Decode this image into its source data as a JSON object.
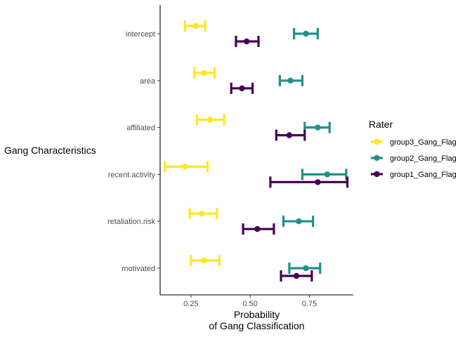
{
  "chart_data": {
    "type": "errorbar-dot",
    "orientation": "horizontal",
    "xlabel": [
      "Probability",
      "of Gang Classification"
    ],
    "ylabel": "Gang Characteristics",
    "xlim": [
      0.12,
      0.935
    ],
    "x_ticks": [
      {
        "value": 0.25,
        "label": "0.25"
      },
      {
        "value": 0.5,
        "label": "0.50"
      },
      {
        "value": 0.75,
        "label": "0.75"
      }
    ],
    "categories": [
      "intercept",
      "area",
      "affiliated",
      "recent.activity",
      "retaliation.risk",
      "motivated"
    ],
    "grid": false,
    "legend": {
      "title": "Rater",
      "placement": "right",
      "order": [
        "group3_Gang_Flag",
        "group2_Gang_Flag",
        "group1_Gang_Flag"
      ]
    },
    "series": [
      {
        "name": "group3_Gang_Flag",
        "color": "#FDE725",
        "points": [
          {
            "category": "intercept",
            "estimate": 0.27,
            "lower": 0.225,
            "upper": 0.31
          },
          {
            "category": "area",
            "estimate": 0.305,
            "lower": 0.265,
            "upper": 0.35
          },
          {
            "category": "affiliated",
            "estimate": 0.33,
            "lower": 0.275,
            "upper": 0.39
          },
          {
            "category": "recent.activity",
            "estimate": 0.225,
            "lower": 0.14,
            "upper": 0.32
          },
          {
            "category": "retaliation.risk",
            "estimate": 0.295,
            "lower": 0.245,
            "upper": 0.36
          },
          {
            "category": "motivated",
            "estimate": 0.305,
            "lower": 0.25,
            "upper": 0.37
          }
        ]
      },
      {
        "name": "group2_Gang_Flag",
        "color": "#21908C",
        "points": [
          {
            "category": "intercept",
            "estimate": 0.735,
            "lower": 0.685,
            "upper": 0.785
          },
          {
            "category": "area",
            "estimate": 0.67,
            "lower": 0.625,
            "upper": 0.72
          },
          {
            "category": "affiliated",
            "estimate": 0.785,
            "lower": 0.73,
            "upper": 0.835
          },
          {
            "category": "recent.activity",
            "estimate": 0.825,
            "lower": 0.72,
            "upper": 0.905
          },
          {
            "category": "retaliation.risk",
            "estimate": 0.705,
            "lower": 0.64,
            "upper": 0.765
          },
          {
            "category": "motivated",
            "estimate": 0.735,
            "lower": 0.665,
            "upper": 0.795
          }
        ]
      },
      {
        "name": "group1_Gang_Flag",
        "color": "#440154",
        "points": [
          {
            "category": "intercept",
            "estimate": 0.485,
            "lower": 0.44,
            "upper": 0.535
          },
          {
            "category": "area",
            "estimate": 0.465,
            "lower": 0.42,
            "upper": 0.51
          },
          {
            "category": "affiliated",
            "estimate": 0.665,
            "lower": 0.61,
            "upper": 0.73
          },
          {
            "category": "recent.activity",
            "estimate": 0.785,
            "lower": 0.585,
            "upper": 0.91
          },
          {
            "category": "retaliation.risk",
            "estimate": 0.53,
            "lower": 0.47,
            "upper": 0.6
          },
          {
            "category": "motivated",
            "estimate": 0.695,
            "lower": 0.63,
            "upper": 0.76
          }
        ]
      }
    ]
  }
}
